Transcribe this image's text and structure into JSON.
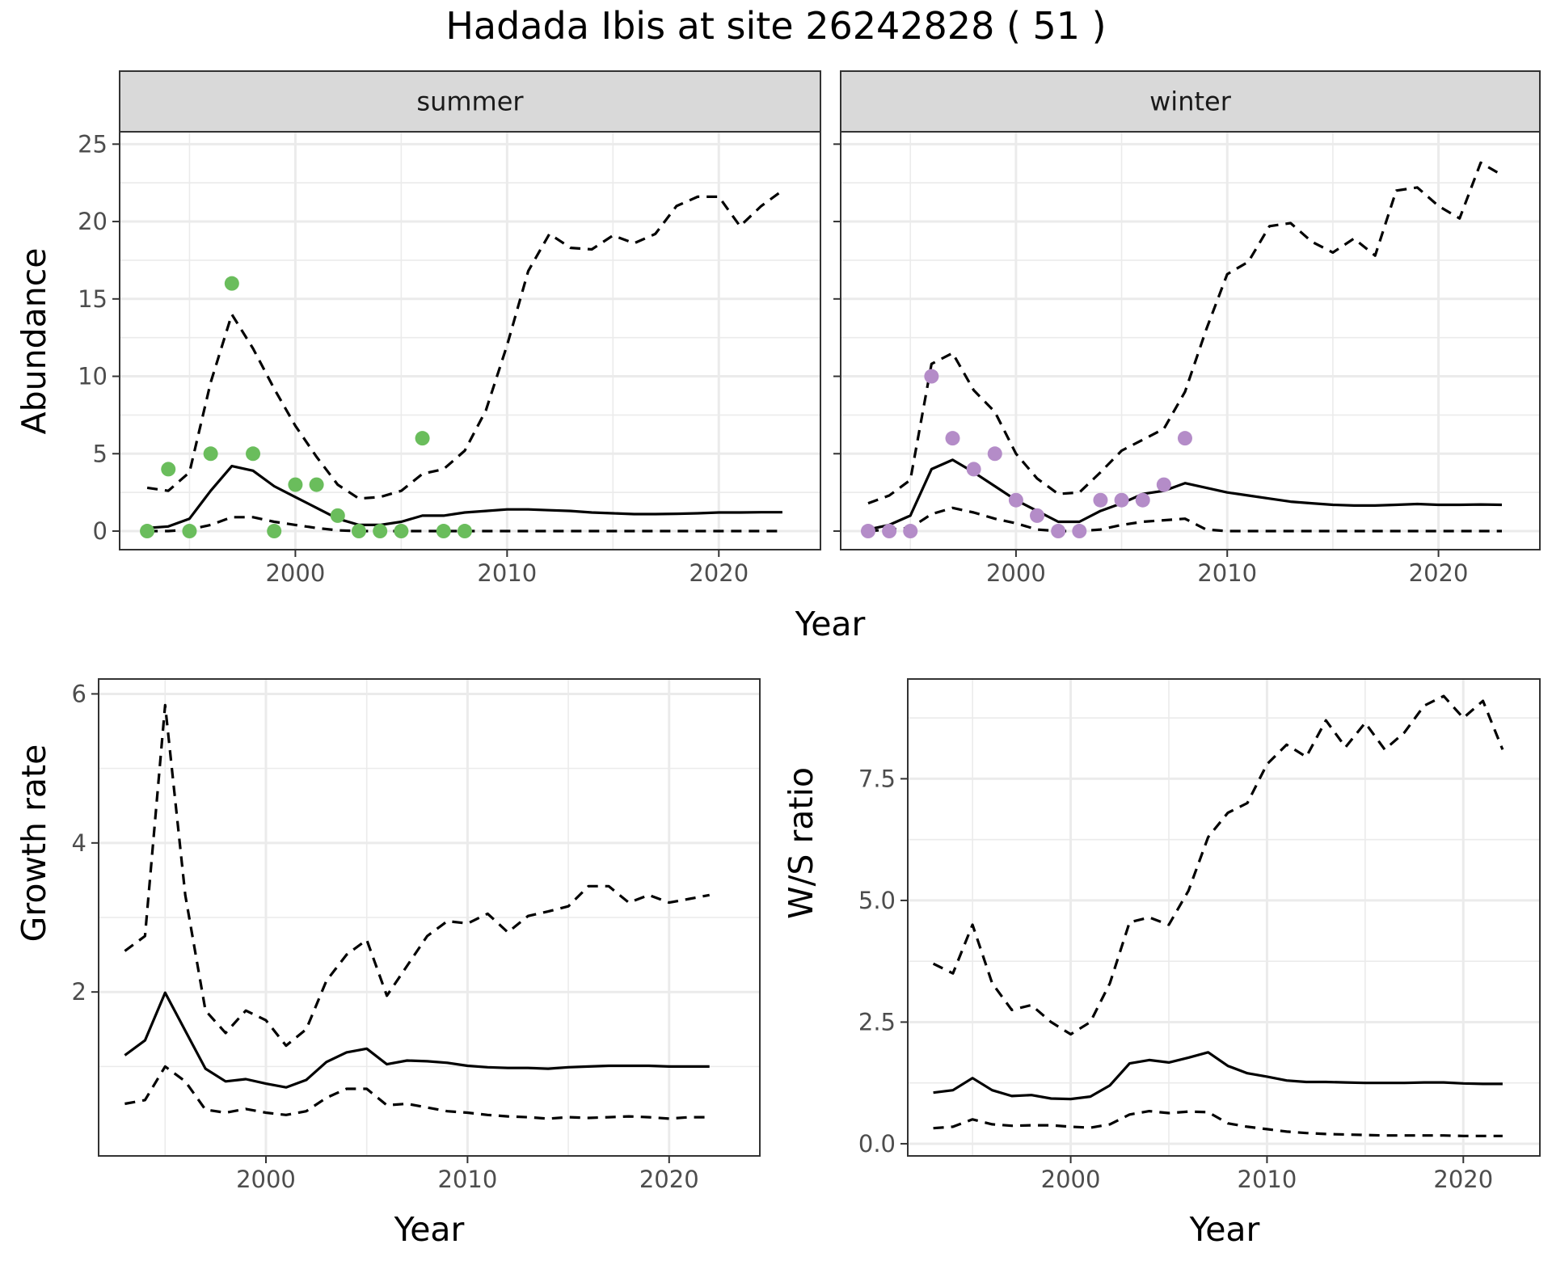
{
  "title": "Hadada Ibis at site 26242828 ( 51 )",
  "colors": {
    "summer_points": "#6abd5c",
    "winter_points": "#b48cc8",
    "line": "#000000",
    "strip_fill": "#d9d9d9",
    "grid": "#ebebeb"
  },
  "chart_data": [
    {
      "type": "line",
      "panel": "summer",
      "strip_label": "summer",
      "xlabel": "Year",
      "ylabel": "Abundance",
      "ylim": [
        -1.2,
        25.8
      ],
      "xlim": [
        1991.7,
        2024.8
      ],
      "x_ticks": [
        2000,
        2010,
        2020
      ],
      "x_tick_labels": [
        "2000",
        "2010",
        "2020"
      ],
      "y_ticks": [
        0,
        5,
        10,
        15,
        20,
        25
      ],
      "y_tick_labels": [
        "0",
        "5",
        "10",
        "15",
        "20",
        "25"
      ],
      "grid": true,
      "series": [
        {
          "style": "solid",
          "x": [
            1993,
            1994,
            1995,
            1996,
            1997,
            1998,
            1999,
            2000,
            2001,
            2002,
            2003,
            2004,
            2005,
            2006,
            2007,
            2008,
            2009,
            2010,
            2011,
            2012,
            2013,
            2014,
            2015,
            2016,
            2017,
            2018,
            2019,
            2020,
            2021,
            2022,
            2023
          ],
          "values": [
            0.2,
            0.3,
            0.8,
            2.6,
            4.2,
            3.9,
            2.9,
            2.2,
            1.5,
            0.8,
            0.4,
            0.4,
            0.6,
            1.0,
            1.0,
            1.2,
            1.3,
            1.4,
            1.4,
            1.35,
            1.3,
            1.2,
            1.15,
            1.1,
            1.1,
            1.12,
            1.15,
            1.2,
            1.2,
            1.22,
            1.22
          ]
        },
        {
          "style": "dashed",
          "x": [
            1993,
            1994,
            1995,
            1996,
            1997,
            1998,
            1999,
            2000,
            2001,
            2002,
            2003,
            2004,
            2005,
            2006,
            2007,
            2008,
            2009,
            2010,
            2011,
            2012,
            2013,
            2014,
            2015,
            2016,
            2017,
            2018,
            2019,
            2020,
            2021,
            2022,
            2023
          ],
          "values": [
            2.8,
            2.6,
            3.8,
            9.6,
            14.0,
            11.8,
            9.2,
            6.8,
            4.8,
            3.0,
            2.1,
            2.2,
            2.6,
            3.7,
            4.0,
            5.2,
            7.8,
            12.0,
            16.8,
            19.2,
            18.3,
            18.2,
            19.1,
            18.6,
            19.2,
            21.0,
            21.6,
            21.6,
            19.7,
            21.0,
            22.0
          ]
        },
        {
          "style": "dashed",
          "x": [
            1993,
            1994,
            1995,
            1996,
            1997,
            1998,
            1999,
            2000,
            2001,
            2002,
            2003,
            2004,
            2005,
            2006,
            2007,
            2008,
            2009,
            2010,
            2011,
            2012,
            2013,
            2014,
            2015,
            2016,
            2017,
            2018,
            2019,
            2020,
            2021,
            2022,
            2023
          ],
          "values": [
            0.0,
            0.0,
            0.1,
            0.4,
            0.9,
            0.9,
            0.6,
            0.4,
            0.2,
            0.05,
            0,
            0,
            0,
            0,
            0,
            0,
            0,
            0,
            0,
            0,
            0,
            0,
            0,
            0,
            0,
            0,
            0,
            0,
            0,
            0,
            0
          ]
        }
      ],
      "points": {
        "x": [
          1993,
          1994,
          1995,
          1996,
          1997,
          1998,
          1999,
          2000,
          2001,
          2002,
          2003,
          2004,
          2005,
          2006,
          2007,
          2008
        ],
        "y": [
          0,
          4,
          0,
          5,
          16,
          5,
          0,
          3,
          3,
          1,
          0,
          0,
          0,
          6,
          0,
          0
        ]
      }
    },
    {
      "type": "line",
      "panel": "winter",
      "strip_label": "winter",
      "xlabel": "Year",
      "ylabel": "",
      "ylim": [
        -1.2,
        25.8
      ],
      "xlim": [
        1991.7,
        2024.8
      ],
      "x_ticks": [
        2000,
        2010,
        2020
      ],
      "x_tick_labels": [
        "2000",
        "2010",
        "2020"
      ],
      "y_ticks": [
        0,
        5,
        10,
        15,
        20,
        25
      ],
      "grid": true,
      "series": [
        {
          "style": "solid",
          "x": [
            1993,
            1994,
            1995,
            1996,
            1997,
            1998,
            1999,
            2000,
            2001,
            2002,
            2003,
            2004,
            2005,
            2006,
            2007,
            2008,
            2009,
            2010,
            2011,
            2012,
            2013,
            2014,
            2015,
            2016,
            2017,
            2018,
            2019,
            2020,
            2021,
            2022,
            2023
          ],
          "values": [
            0.1,
            0.4,
            1.0,
            4.0,
            4.6,
            3.8,
            2.9,
            2.0,
            1.3,
            0.6,
            0.6,
            1.3,
            1.8,
            2.4,
            2.6,
            3.1,
            2.8,
            2.5,
            2.3,
            2.1,
            1.9,
            1.8,
            1.7,
            1.65,
            1.65,
            1.7,
            1.75,
            1.7,
            1.7,
            1.72,
            1.7
          ]
        },
        {
          "style": "dashed",
          "x": [
            1993,
            1994,
            1995,
            1996,
            1997,
            1998,
            1999,
            2000,
            2001,
            2002,
            2003,
            2004,
            2005,
            2006,
            2007,
            2008,
            2009,
            2010,
            2011,
            2012,
            2013,
            2014,
            2015,
            2016,
            2017,
            2018,
            2019,
            2020,
            2021,
            2022,
            2023
          ],
          "values": [
            1.8,
            2.3,
            3.3,
            10.8,
            11.5,
            9.1,
            7.7,
            5.0,
            3.4,
            2.4,
            2.5,
            3.8,
            5.2,
            5.9,
            6.6,
            9.0,
            13.0,
            16.6,
            17.4,
            19.7,
            19.9,
            18.7,
            18.0,
            18.9,
            17.8,
            22.0,
            22.2,
            21.0,
            20.2,
            23.8,
            23.0
          ]
        },
        {
          "style": "dashed",
          "x": [
            1993,
            1994,
            1995,
            1996,
            1997,
            1998,
            1999,
            2000,
            2001,
            2002,
            2003,
            2004,
            2005,
            2006,
            2007,
            2008,
            2009,
            2010,
            2011,
            2012,
            2013,
            2014,
            2015,
            2016,
            2017,
            2018,
            2019,
            2020,
            2021,
            2022,
            2023
          ],
          "values": [
            0,
            0.1,
            0.2,
            1.1,
            1.5,
            1.2,
            0.8,
            0.5,
            0.1,
            0,
            0,
            0.1,
            0.4,
            0.6,
            0.7,
            0.8,
            0.1,
            0,
            0,
            0,
            0,
            0,
            0,
            0,
            0,
            0,
            0,
            0,
            0,
            0,
            0
          ]
        }
      ],
      "points": {
        "x": [
          1993,
          1994,
          1995,
          1996,
          1997,
          1998,
          1999,
          2000,
          2001,
          2002,
          2003,
          2004,
          2005,
          2006,
          2007,
          2008
        ],
        "y": [
          0,
          0,
          0,
          10,
          6,
          4,
          5,
          2,
          1,
          0,
          0,
          2,
          2,
          2,
          3,
          6
        ]
      }
    },
    {
      "type": "line",
      "panel": "growth",
      "xlabel": "Year",
      "ylabel": "Growth rate",
      "ylim": [
        -0.2,
        6.2
      ],
      "xlim": [
        1991.7,
        2024.5
      ],
      "x_ticks": [
        2000,
        2010,
        2020
      ],
      "x_tick_labels": [
        "2000",
        "2010",
        "2020"
      ],
      "y_ticks": [
        2,
        4,
        6
      ],
      "y_tick_labels": [
        "2",
        "4",
        "6"
      ],
      "grid": true,
      "series": [
        {
          "style": "solid",
          "x": [
            1993,
            1994,
            1995,
            1996,
            1997,
            1998,
            1999,
            2000,
            2001,
            2002,
            2003,
            2004,
            2005,
            2006,
            2007,
            2008,
            2009,
            2010,
            2011,
            2012,
            2013,
            2014,
            2015,
            2016,
            2017,
            2018,
            2019,
            2020,
            2021,
            2022
          ],
          "values": [
            1.15,
            1.35,
            1.99,
            1.48,
            0.97,
            0.8,
            0.83,
            0.77,
            0.72,
            0.82,
            1.06,
            1.19,
            1.24,
            1.03,
            1.08,
            1.07,
            1.05,
            1.01,
            0.99,
            0.98,
            0.98,
            0.97,
            0.99,
            1.0,
            1.01,
            1.01,
            1.01,
            1.0,
            1.0,
            1.0
          ]
        },
        {
          "style": "dashed",
          "x": [
            1993,
            1994,
            1995,
            1996,
            1997,
            1998,
            1999,
            2000,
            2001,
            2002,
            2003,
            2004,
            2005,
            2006,
            2007,
            2008,
            2009,
            2010,
            2011,
            2012,
            2013,
            2014,
            2015,
            2016,
            2017,
            2018,
            2019,
            2020,
            2021,
            2022
          ],
          "values": [
            2.55,
            2.75,
            5.85,
            3.3,
            1.75,
            1.45,
            1.75,
            1.62,
            1.28,
            1.5,
            2.15,
            2.5,
            2.7,
            1.95,
            2.35,
            2.75,
            2.95,
            2.92,
            3.05,
            2.8,
            3.02,
            3.08,
            3.15,
            3.42,
            3.42,
            3.2,
            3.3,
            3.2,
            3.25,
            3.3
          ]
        },
        {
          "style": "dashed",
          "x": [
            1993,
            1994,
            1995,
            1996,
            1997,
            1998,
            1999,
            2000,
            2001,
            2002,
            2003,
            2004,
            2005,
            2006,
            2007,
            2008,
            2009,
            2010,
            2011,
            2012,
            2013,
            2014,
            2015,
            2016,
            2017,
            2018,
            2019,
            2020,
            2021,
            2022
          ],
          "values": [
            0.5,
            0.55,
            1.0,
            0.8,
            0.42,
            0.38,
            0.43,
            0.38,
            0.35,
            0.4,
            0.58,
            0.7,
            0.7,
            0.48,
            0.5,
            0.45,
            0.4,
            0.38,
            0.35,
            0.33,
            0.32,
            0.3,
            0.32,
            0.31,
            0.32,
            0.33,
            0.32,
            0.3,
            0.32,
            0.32
          ]
        }
      ]
    },
    {
      "type": "line",
      "panel": "ratio",
      "xlabel": "Year",
      "ylabel": "W/S ratio",
      "ylim": [
        -0.25,
        9.55
      ],
      "xlim": [
        1991.7,
        2023.9
      ],
      "x_ticks": [
        2000,
        2010,
        2020
      ],
      "x_tick_labels": [
        "2000",
        "2010",
        "2020"
      ],
      "y_ticks": [
        0,
        2.5,
        5,
        7.5
      ],
      "y_tick_labels": [
        "0.0",
        "2.5",
        "5.0",
        "7.5"
      ],
      "grid": true,
      "series": [
        {
          "style": "solid",
          "x": [
            1993,
            1994,
            1995,
            1996,
            1997,
            1998,
            1999,
            2000,
            2001,
            2002,
            2003,
            2004,
            2005,
            2006,
            2007,
            2008,
            2009,
            2010,
            2011,
            2012,
            2013,
            2014,
            2015,
            2016,
            2017,
            2018,
            2019,
            2020,
            2021,
            2022
          ],
          "values": [
            1.05,
            1.1,
            1.35,
            1.1,
            0.98,
            1.0,
            0.93,
            0.92,
            0.97,
            1.2,
            1.65,
            1.72,
            1.67,
            1.77,
            1.88,
            1.6,
            1.45,
            1.38,
            1.3,
            1.27,
            1.27,
            1.26,
            1.25,
            1.25,
            1.25,
            1.26,
            1.26,
            1.24,
            1.23,
            1.23
          ]
        },
        {
          "style": "dashed",
          "x": [
            1993,
            1994,
            1995,
            1996,
            1997,
            1998,
            1999,
            2000,
            2001,
            2002,
            2003,
            2004,
            2005,
            2006,
            2007,
            2008,
            2009,
            2010,
            2011,
            2012,
            2013,
            2014,
            2015,
            2016,
            2017,
            2018,
            2019,
            2020,
            2021,
            2022
          ],
          "values": [
            3.7,
            3.5,
            4.5,
            3.3,
            2.75,
            2.85,
            2.5,
            2.25,
            2.5,
            3.3,
            4.55,
            4.65,
            4.5,
            5.2,
            6.3,
            6.8,
            7.0,
            7.8,
            8.2,
            7.95,
            8.7,
            8.15,
            8.65,
            8.1,
            8.45,
            9.0,
            9.2,
            8.75,
            9.1,
            8.1
          ]
        },
        {
          "style": "dashed",
          "x": [
            1993,
            1994,
            1995,
            1996,
            1997,
            1998,
            1999,
            2000,
            2001,
            2002,
            2003,
            2004,
            2005,
            2006,
            2007,
            2008,
            2009,
            2010,
            2011,
            2012,
            2013,
            2014,
            2015,
            2016,
            2017,
            2018,
            2019,
            2020,
            2021,
            2022
          ],
          "values": [
            0.32,
            0.35,
            0.5,
            0.4,
            0.37,
            0.38,
            0.38,
            0.35,
            0.33,
            0.4,
            0.6,
            0.67,
            0.63,
            0.66,
            0.65,
            0.42,
            0.35,
            0.3,
            0.25,
            0.22,
            0.2,
            0.19,
            0.18,
            0.17,
            0.17,
            0.17,
            0.17,
            0.16,
            0.16,
            0.16
          ]
        }
      ]
    }
  ]
}
